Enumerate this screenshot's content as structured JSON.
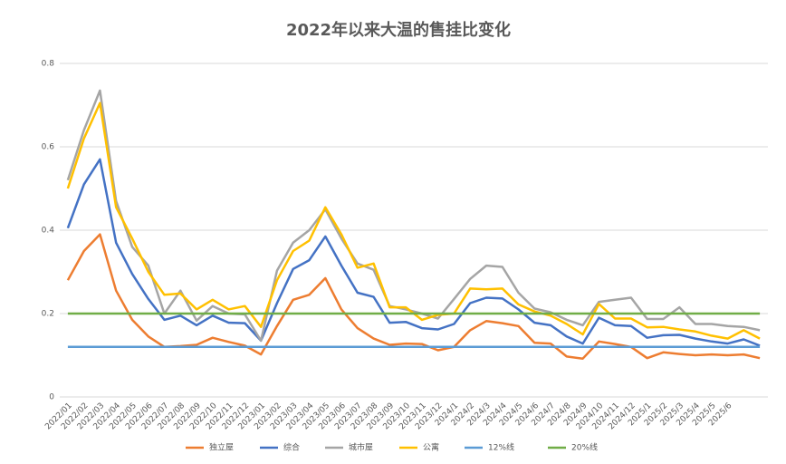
{
  "chart_data": {
    "type": "line",
    "title": "2022年以来大温的售挂比变化",
    "categories": [
      "2022/01",
      "2022/02",
      "2022/03",
      "2022/04",
      "2022/05",
      "2022/06",
      "2022/07",
      "2022/08",
      "2022/09",
      "2022/10",
      "2022/11",
      "2022/12",
      "2023/01",
      "2023/02",
      "2023/03",
      "2023/04",
      "2023/05",
      "2023/06",
      "2023/07",
      "2023/08",
      "2023/09",
      "2023/10",
      "2023/11",
      "2023/12",
      "2024/1",
      "2024/2",
      "2024/3",
      "2024/4",
      "2024/5",
      "2024/6",
      "2024/7",
      "2024/8",
      "2024/9",
      "2024/10",
      "2024/11",
      "2024/12",
      "2025/1",
      "2025/2",
      "2025/3",
      "2025/4",
      "2025/5",
      "2025/6",
      null,
      null
    ],
    "series": [
      {
        "name": "独立屋",
        "color": "#ED7D31",
        "values": [
          0.28,
          0.35,
          0.39,
          0.255,
          0.185,
          0.145,
          0.12,
          0.122,
          0.125,
          0.142,
          0.132,
          0.123,
          0.102,
          0.17,
          0.233,
          0.245,
          0.285,
          0.21,
          0.165,
          0.14,
          0.125,
          0.128,
          0.127,
          0.112,
          0.12,
          0.16,
          0.182,
          0.177,
          0.17,
          0.13,
          0.128,
          0.097,
          0.092,
          0.133,
          0.127,
          0.12,
          0.093,
          0.107,
          0.103,
          0.1,
          0.102,
          0.1,
          0.102,
          0.093
        ]
      },
      {
        "name": "综合",
        "color": "#4472C4",
        "values": [
          0.405,
          0.51,
          0.57,
          0.37,
          0.295,
          0.235,
          0.185,
          0.195,
          0.172,
          0.195,
          0.178,
          0.177,
          0.135,
          0.225,
          0.307,
          0.328,
          0.385,
          0.315,
          0.25,
          0.24,
          0.178,
          0.18,
          0.165,
          0.162,
          0.175,
          0.225,
          0.238,
          0.236,
          0.21,
          0.178,
          0.172,
          0.145,
          0.128,
          0.19,
          0.172,
          0.17,
          0.142,
          0.148,
          0.149,
          0.14,
          0.133,
          0.128,
          0.138,
          0.123
        ]
      },
      {
        "name": "城市屋",
        "color": "#A5A5A5",
        "values": [
          0.52,
          0.64,
          0.735,
          0.47,
          0.36,
          0.315,
          0.2,
          0.255,
          0.183,
          0.218,
          0.2,
          0.198,
          0.135,
          0.303,
          0.37,
          0.4,
          0.45,
          0.38,
          0.32,
          0.305,
          0.218,
          0.21,
          0.2,
          0.188,
          0.235,
          0.283,
          0.315,
          0.312,
          0.25,
          0.212,
          0.203,
          0.185,
          0.172,
          0.228,
          0.233,
          0.238,
          0.187,
          0.187,
          0.215,
          0.175,
          0.175,
          0.17,
          0.168,
          0.16
        ]
      },
      {
        "name": "公寓",
        "color": "#FFC000",
        "values": [
          0.5,
          0.62,
          0.705,
          0.455,
          0.38,
          0.3,
          0.245,
          0.248,
          0.21,
          0.233,
          0.21,
          0.218,
          0.168,
          0.28,
          0.35,
          0.375,
          0.455,
          0.39,
          0.31,
          0.32,
          0.215,
          0.215,
          0.185,
          0.197,
          0.2,
          0.26,
          0.258,
          0.26,
          0.222,
          0.205,
          0.195,
          0.175,
          0.15,
          0.223,
          0.188,
          0.188,
          0.167,
          0.168,
          0.162,
          0.157,
          0.147,
          0.14,
          0.16,
          0.14
        ]
      },
      {
        "name": "12%线",
        "color": "#5B9BD5",
        "values": [
          0.12,
          0.12,
          0.12,
          0.12,
          0.12,
          0.12,
          0.12,
          0.12,
          0.12,
          0.12,
          0.12,
          0.12,
          0.12,
          0.12,
          0.12,
          0.12,
          0.12,
          0.12,
          0.12,
          0.12,
          0.12,
          0.12,
          0.12,
          0.12,
          0.12,
          0.12,
          0.12,
          0.12,
          0.12,
          0.12,
          0.12,
          0.12,
          0.12,
          0.12,
          0.12,
          0.12,
          0.12,
          0.12,
          0.12,
          0.12,
          0.12,
          0.12,
          0.12,
          0.12
        ]
      },
      {
        "name": "20%线",
        "color": "#70AD47",
        "values": [
          0.2,
          0.2,
          0.2,
          0.2,
          0.2,
          0.2,
          0.2,
          0.2,
          0.2,
          0.2,
          0.2,
          0.2,
          0.2,
          0.2,
          0.2,
          0.2,
          0.2,
          0.2,
          0.2,
          0.2,
          0.2,
          0.2,
          0.2,
          0.2,
          0.2,
          0.2,
          0.2,
          0.2,
          0.2,
          0.2,
          0.2,
          0.2,
          0.2,
          0.2,
          0.2,
          0.2,
          0.2,
          0.2,
          0.2,
          0.2,
          0.2,
          0.2,
          0.2,
          0.2
        ]
      }
    ],
    "ylim": [
      0,
      0.8
    ],
    "yticks": [
      0,
      0.2,
      0.4,
      0.6,
      0.8
    ],
    "grid": true,
    "legend": "bottom"
  }
}
